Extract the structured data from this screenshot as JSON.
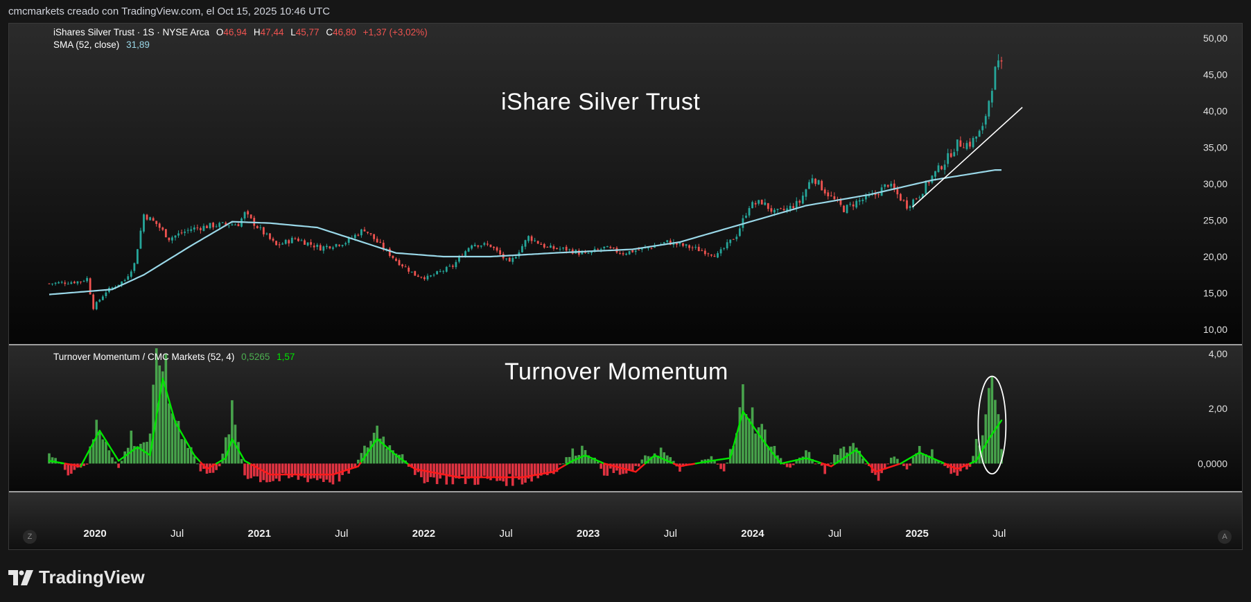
{
  "header": {
    "attribution": "cmcmarkets creado con TradingView.com, el Oct 15, 2025 10:46 UTC"
  },
  "legend": {
    "symbol": "iShares Silver Trust · 1S · NYSE Arca",
    "ohlc": {
      "o_label": "O",
      "o": "46,94",
      "h_label": "H",
      "h": "47,44",
      "l_label": "L",
      "l": "45,77",
      "c_label": "C",
      "c": "46,80",
      "change": "+1,37 (+3,02%)"
    },
    "sma_label": "SMA (52, close)",
    "sma_value": "31,89",
    "indicator_label": "Turnover Momentum / CMC Markets (52, 4)",
    "indicator_v1": "0,5265",
    "indicator_v2": "1,57"
  },
  "annotations": {
    "price_title": "iShare Silver Trust",
    "indicator_title": "Turnover Momentum"
  },
  "time_axis": {
    "labels": [
      "2020",
      "Jul",
      "2021",
      "Jul",
      "2022",
      "Jul",
      "2023",
      "Jul",
      "2024",
      "Jul",
      "2025",
      "Jul"
    ],
    "bold": [
      true,
      false,
      true,
      false,
      true,
      false,
      true,
      false,
      true,
      false,
      true,
      false
    ]
  },
  "buttons": {
    "left": "Z",
    "right": "A"
  },
  "brand": {
    "name": "TradingView"
  },
  "colors": {
    "up": "#26a69a",
    "down": "#ef5350",
    "sma": "#9ad8e8",
    "hist_up": "#4caf50",
    "hist_down": "#f23645",
    "signal_up": "#00e600",
    "signal_down": "#ff1a1a"
  },
  "chart_data": [
    {
      "type": "candlestick",
      "title": "iShares Silver Trust · 1S · NYSE Arca",
      "x_start": "2020-01",
      "x_end": "2025-10",
      "ylim": [
        8,
        52
      ],
      "y_ticks": [
        "50,00",
        "45,00",
        "40,00",
        "35,00",
        "30,00",
        "25,00",
        "20,00",
        "15,00",
        "10,00"
      ],
      "close_anchors": [
        [
          0,
          16.3
        ],
        [
          10,
          16.6
        ],
        [
          12,
          17.0
        ],
        [
          14,
          13.0
        ],
        [
          18,
          15.2
        ],
        [
          24,
          16.8
        ],
        [
          27,
          19.0
        ],
        [
          30,
          25.8
        ],
        [
          34,
          24.5
        ],
        [
          38,
          22.5
        ],
        [
          45,
          23.8
        ],
        [
          52,
          24.3
        ],
        [
          60,
          24.5
        ],
        [
          62,
          25.9
        ],
        [
          66,
          24.1
        ],
        [
          72,
          21.5
        ],
        [
          78,
          22.5
        ],
        [
          86,
          21.2
        ],
        [
          94,
          22.0
        ],
        [
          100,
          23.8
        ],
        [
          104,
          22.0
        ],
        [
          110,
          19.5
        ],
        [
          116,
          17.5
        ],
        [
          120,
          17.1
        ],
        [
          128,
          18.7
        ],
        [
          134,
          21.8
        ],
        [
          140,
          21.5
        ],
        [
          146,
          19.0
        ],
        [
          152,
          22.7
        ],
        [
          158,
          21.2
        ],
        [
          164,
          21.0
        ],
        [
          170,
          20.3
        ],
        [
          176,
          21.2
        ],
        [
          182,
          20.5
        ],
        [
          190,
          21.2
        ],
        [
          196,
          22.0
        ],
        [
          204,
          21.2
        ],
        [
          212,
          20.2
        ],
        [
          218,
          23.0
        ],
        [
          222,
          27.0
        ],
        [
          226,
          27.5
        ],
        [
          230,
          26.0
        ],
        [
          234,
          26.5
        ],
        [
          238,
          27.5
        ],
        [
          242,
          31.0
        ],
        [
          246,
          29.0
        ],
        [
          252,
          26.5
        ],
        [
          256,
          27.5
        ],
        [
          262,
          28.5
        ],
        [
          266,
          30.0
        ],
        [
          270,
          28.0
        ],
        [
          272,
          27.0
        ],
        [
          276,
          28.5
        ],
        [
          280,
          31.0
        ],
        [
          284,
          33.0
        ],
        [
          288,
          35.5
        ],
        [
          292,
          35.5
        ],
        [
          296,
          37.5
        ],
        [
          300,
          45.5
        ],
        [
          302,
          46.8
        ]
      ],
      "sma52_anchors": [
        [
          0,
          14.8
        ],
        [
          20,
          15.5
        ],
        [
          30,
          17.5
        ],
        [
          45,
          21.5
        ],
        [
          58,
          24.8
        ],
        [
          70,
          24.6
        ],
        [
          85,
          24.0
        ],
        [
          110,
          20.5
        ],
        [
          125,
          20.0
        ],
        [
          140,
          20.0
        ],
        [
          160,
          20.5
        ],
        [
          185,
          21.0
        ],
        [
          200,
          22.0
        ],
        [
          220,
          24.5
        ],
        [
          240,
          27.0
        ],
        [
          260,
          28.5
        ],
        [
          280,
          30.5
        ],
        [
          300,
          31.9
        ]
      ],
      "last": {
        "open": 46.94,
        "high": 47.44,
        "low": 45.77,
        "close": 46.8,
        "change": 1.37,
        "change_pct": 3.02
      },
      "sma": {
        "period": 52,
        "source": "close",
        "value": 31.89
      },
      "trendline": {
        "from": [
          "2025-04",
          26.8
        ],
        "to": [
          "2025-10",
          40.5
        ]
      }
    },
    {
      "type": "bar",
      "title": "Turnover Momentum / CMC Markets (52, 4)",
      "ylim": [
        -1.0,
        4.3
      ],
      "y_ticks": [
        "4,00",
        "2,00",
        "0,0000"
      ],
      "histogram_anchors": [
        [
          0,
          0.4
        ],
        [
          6,
          -0.3
        ],
        [
          12,
          0.0
        ],
        [
          15,
          1.4
        ],
        [
          18,
          0.9
        ],
        [
          22,
          -0.2
        ],
        [
          26,
          1.0
        ],
        [
          28,
          0.7
        ],
        [
          32,
          0.9
        ],
        [
          34,
          3.6
        ],
        [
          36,
          4.1
        ],
        [
          38,
          2.2
        ],
        [
          42,
          1.2
        ],
        [
          46,
          0.3
        ],
        [
          48,
          -0.3
        ],
        [
          54,
          -0.2
        ],
        [
          56,
          0.8
        ],
        [
          58,
          1.8
        ],
        [
          60,
          0.8
        ],
        [
          62,
          -0.4
        ],
        [
          70,
          -0.6
        ],
        [
          80,
          -0.5
        ],
        [
          90,
          -0.6
        ],
        [
          96,
          -0.3
        ],
        [
          100,
          0.5
        ],
        [
          104,
          1.3
        ],
        [
          108,
          0.6
        ],
        [
          112,
          0.4
        ],
        [
          116,
          -0.5
        ],
        [
          130,
          -0.6
        ],
        [
          150,
          -0.6
        ],
        [
          160,
          -0.3
        ],
        [
          166,
          0.4
        ],
        [
          170,
          0.6
        ],
        [
          176,
          -0.3
        ],
        [
          184,
          -0.4
        ],
        [
          190,
          0.3
        ],
        [
          194,
          0.5
        ],
        [
          200,
          -0.2
        ],
        [
          210,
          0.2
        ],
        [
          214,
          -0.2
        ],
        [
          218,
          1.0
        ],
        [
          220,
          2.5
        ],
        [
          224,
          1.5
        ],
        [
          228,
          0.9
        ],
        [
          234,
          -0.2
        ],
        [
          240,
          0.4
        ],
        [
          246,
          -0.3
        ],
        [
          250,
          0.5
        ],
        [
          256,
          0.7
        ],
        [
          262,
          -0.6
        ],
        [
          268,
          0.3
        ],
        [
          272,
          -0.3
        ],
        [
          276,
          0.6
        ],
        [
          280,
          0.4
        ],
        [
          286,
          -0.4
        ],
        [
          292,
          -0.1
        ],
        [
          294,
          0.7
        ],
        [
          296,
          1.2
        ],
        [
          298,
          2.5
        ],
        [
          300,
          2.6
        ],
        [
          302,
          0.5
        ]
      ],
      "signal_anchors": [
        [
          0,
          0.1
        ],
        [
          10,
          -0.1
        ],
        [
          16,
          1.2
        ],
        [
          22,
          0.1
        ],
        [
          28,
          0.6
        ],
        [
          32,
          0.3
        ],
        [
          36,
          3.1
        ],
        [
          40,
          1.5
        ],
        [
          46,
          0.3
        ],
        [
          50,
          -0.2
        ],
        [
          56,
          0.2
        ],
        [
          58,
          0.9
        ],
        [
          62,
          0.1
        ],
        [
          70,
          -0.4
        ],
        [
          90,
          -0.4
        ],
        [
          98,
          -0.1
        ],
        [
          104,
          0.9
        ],
        [
          110,
          0.3
        ],
        [
          116,
          -0.2
        ],
        [
          130,
          -0.5
        ],
        [
          150,
          -0.5
        ],
        [
          160,
          -0.3
        ],
        [
          166,
          0.1
        ],
        [
          170,
          0.3
        ],
        [
          176,
          0.0
        ],
        [
          186,
          -0.3
        ],
        [
          192,
          0.3
        ],
        [
          200,
          -0.1
        ],
        [
          210,
          0.1
        ],
        [
          216,
          0.2
        ],
        [
          220,
          1.9
        ],
        [
          226,
          0.9
        ],
        [
          232,
          0.0
        ],
        [
          240,
          0.2
        ],
        [
          248,
          -0.1
        ],
        [
          256,
          0.5
        ],
        [
          262,
          -0.3
        ],
        [
          270,
          0.0
        ],
        [
          276,
          0.4
        ],
        [
          282,
          0.1
        ],
        [
          288,
          -0.2
        ],
        [
          294,
          0.1
        ],
        [
          298,
          0.9
        ],
        [
          302,
          1.57
        ]
      ],
      "last": {
        "histogram": 0.5265,
        "signal": 1.57
      },
      "highlight": "ellipse around 2025 Aug–Oct spike"
    }
  ]
}
